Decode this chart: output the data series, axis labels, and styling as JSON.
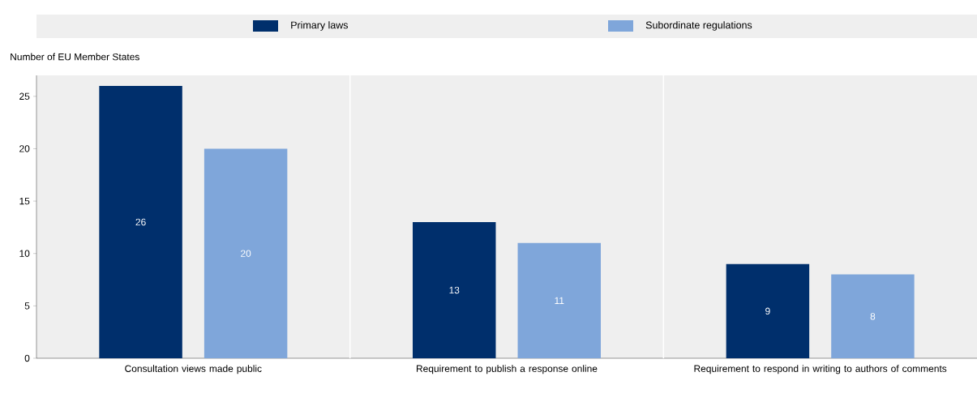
{
  "chart_data": {
    "type": "bar",
    "ylabel": "Number of EU Member States",
    "categories": [
      "Consultation views made public",
      "Requirement to publish a response online",
      "Requirement to respond in writing to authors of comments"
    ],
    "series": [
      {
        "name": "Primary laws",
        "color": "#002f6c",
        "values": [
          26,
          13,
          9
        ]
      },
      {
        "name": "Subordinate regulations",
        "color": "#7fa6da",
        "values": [
          20,
          11,
          8
        ]
      }
    ],
    "ylim": [
      0,
      27
    ],
    "yticks": [
      0,
      5,
      10,
      15,
      20,
      25
    ],
    "legend": "top",
    "data_labels": true
  }
}
